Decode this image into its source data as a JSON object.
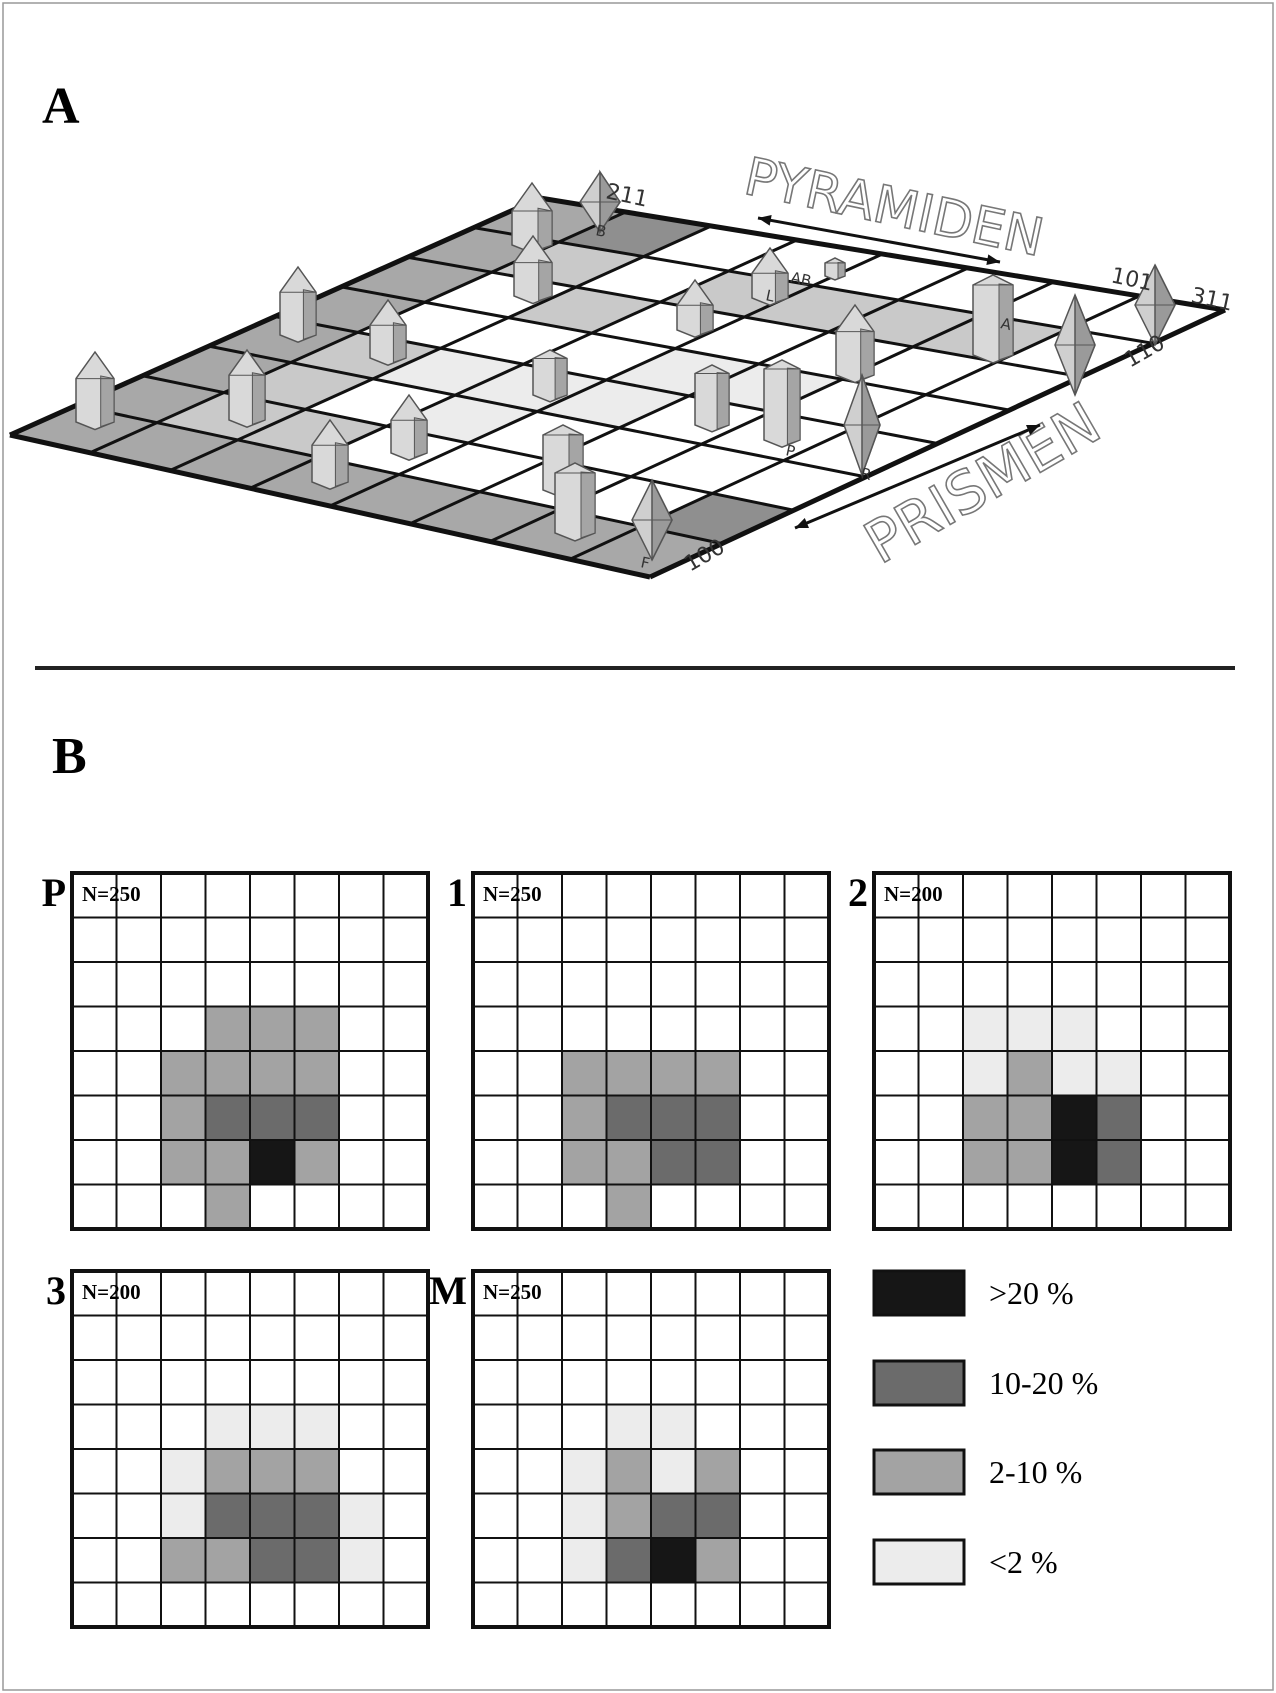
{
  "panel_a": {
    "label": "A",
    "pyramid_label": "PYRAMIDEN",
    "prism_label": "PRISMEN",
    "axis_labels": [
      "211",
      "101",
      "311",
      "110",
      "100"
    ],
    "cell_labels": [
      "B",
      "AB",
      "A",
      "L",
      "P",
      "R",
      "F"
    ]
  },
  "panel_b": {
    "label": "B",
    "legend": [
      {
        "label": ">20 %",
        "color": "#161616"
      },
      {
        "label": "10-20 %",
        "color": "#6b6b6b"
      },
      {
        "label": "2-10 %",
        "color": "#a3a3a3"
      },
      {
        "label": "<2 %",
        "color": "#ececec"
      }
    ],
    "grids": [
      {
        "label": "P",
        "n_label": "N=250",
        "cells": [
          [
            null,
            null,
            null,
            null,
            null,
            null,
            null,
            null
          ],
          [
            null,
            null,
            null,
            null,
            null,
            null,
            null,
            null
          ],
          [
            null,
            null,
            null,
            null,
            null,
            null,
            null,
            null
          ],
          [
            null,
            null,
            null,
            2,
            2,
            2,
            null,
            null
          ],
          [
            null,
            null,
            2,
            2,
            2,
            2,
            null,
            null
          ],
          [
            null,
            null,
            2,
            1,
            1,
            1,
            null,
            null
          ],
          [
            null,
            null,
            2,
            2,
            0,
            2,
            null,
            null
          ],
          [
            null,
            null,
            null,
            2,
            null,
            null,
            null,
            null
          ]
        ]
      },
      {
        "label": "1",
        "n_label": "N=250",
        "cells": [
          [
            null,
            null,
            null,
            null,
            null,
            null,
            null,
            null
          ],
          [
            null,
            null,
            null,
            null,
            null,
            null,
            null,
            null
          ],
          [
            null,
            null,
            null,
            null,
            null,
            null,
            null,
            null
          ],
          [
            null,
            null,
            null,
            null,
            null,
            null,
            null,
            null
          ],
          [
            null,
            null,
            2,
            2,
            2,
            2,
            null,
            null
          ],
          [
            null,
            null,
            2,
            1,
            1,
            1,
            null,
            null
          ],
          [
            null,
            null,
            2,
            2,
            1,
            1,
            null,
            null
          ],
          [
            null,
            null,
            null,
            2,
            null,
            null,
            null,
            null
          ]
        ]
      },
      {
        "label": "2",
        "n_label": "N=200",
        "cells": [
          [
            null,
            null,
            null,
            null,
            null,
            null,
            null,
            null
          ],
          [
            null,
            null,
            null,
            null,
            null,
            null,
            null,
            null
          ],
          [
            null,
            null,
            null,
            null,
            null,
            null,
            null,
            null
          ],
          [
            null,
            null,
            3,
            3,
            3,
            null,
            null,
            null
          ],
          [
            null,
            null,
            3,
            2,
            3,
            3,
            null,
            null
          ],
          [
            null,
            null,
            2,
            2,
            0,
            1,
            null,
            null
          ],
          [
            null,
            null,
            2,
            2,
            0,
            1,
            null,
            null
          ],
          [
            null,
            null,
            null,
            null,
            null,
            null,
            null,
            null
          ]
        ]
      },
      {
        "label": "3",
        "n_label": "N=200",
        "cells": [
          [
            null,
            null,
            null,
            null,
            null,
            null,
            null,
            null
          ],
          [
            null,
            null,
            null,
            null,
            null,
            null,
            null,
            null
          ],
          [
            null,
            null,
            null,
            null,
            null,
            null,
            null,
            null
          ],
          [
            null,
            null,
            null,
            3,
            3,
            3,
            null,
            null
          ],
          [
            null,
            null,
            3,
            2,
            2,
            2,
            null,
            null
          ],
          [
            null,
            null,
            3,
            1,
            1,
            1,
            3,
            null
          ],
          [
            null,
            null,
            2,
            2,
            1,
            1,
            3,
            null
          ],
          [
            null,
            null,
            null,
            null,
            null,
            null,
            null,
            null
          ]
        ]
      },
      {
        "label": "M",
        "n_label": "N=250",
        "cells": [
          [
            null,
            null,
            null,
            null,
            null,
            null,
            null,
            null
          ],
          [
            null,
            null,
            null,
            null,
            null,
            null,
            null,
            null
          ],
          [
            null,
            null,
            null,
            null,
            null,
            null,
            null,
            null
          ],
          [
            null,
            null,
            null,
            3,
            3,
            null,
            null,
            null
          ],
          [
            null,
            null,
            3,
            2,
            3,
            2,
            null,
            null
          ],
          [
            null,
            null,
            3,
            2,
            1,
            1,
            null,
            null
          ],
          [
            null,
            null,
            3,
            1,
            0,
            2,
            null,
            null
          ],
          [
            null,
            null,
            null,
            null,
            null,
            null,
            null,
            null
          ]
        ]
      }
    ]
  }
}
